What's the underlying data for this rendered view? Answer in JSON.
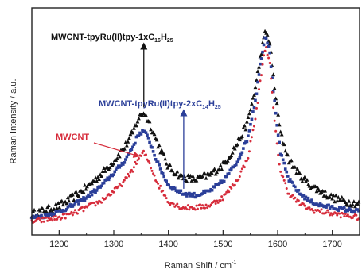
{
  "chart_data": {
    "type": "scatter",
    "xlabel": "Raman Shift / cm",
    "xlabel_sup": "-1",
    "ylabel": "Raman Intensity / a.u.",
    "xlim": [
      1150,
      1750
    ],
    "ylim": [
      0,
      1
    ],
    "yticks_shown": false,
    "grid": false,
    "legend": "none",
    "xticks": [
      1200,
      1300,
      1400,
      1500,
      1600,
      1700
    ],
    "series": [
      {
        "name": "MWCNT-tpyRu(II)tpy-1xC16H25",
        "color": "#111111",
        "marker": "triangle",
        "x": [
          1150,
          1175,
          1200,
          1225,
          1250,
          1275,
          1300,
          1320,
          1335,
          1345,
          1355,
          1365,
          1380,
          1400,
          1425,
          1450,
          1475,
          1500,
          1525,
          1545,
          1560,
          1570,
          1578,
          1585,
          1595,
          1605,
          1620,
          1640,
          1660,
          1680,
          1700,
          1725,
          1750
        ],
        "y": [
          0.05,
          0.07,
          0.09,
          0.13,
          0.18,
          0.24,
          0.31,
          0.38,
          0.45,
          0.52,
          0.55,
          0.5,
          0.4,
          0.28,
          0.23,
          0.22,
          0.24,
          0.29,
          0.39,
          0.5,
          0.68,
          0.85,
          0.95,
          0.9,
          0.66,
          0.45,
          0.32,
          0.24,
          0.19,
          0.16,
          0.13,
          0.11,
          0.1
        ]
      },
      {
        "name": "MWCNT-tpyRu(II)tpy-2xC14H25",
        "color": "#2b3f99",
        "marker": "square",
        "x": [
          1150,
          1175,
          1200,
          1225,
          1250,
          1275,
          1300,
          1320,
          1335,
          1345,
          1355,
          1365,
          1380,
          1400,
          1425,
          1450,
          1475,
          1500,
          1525,
          1545,
          1560,
          1570,
          1578,
          1585,
          1595,
          1605,
          1620,
          1640,
          1660,
          1680,
          1700,
          1725,
          1750
        ],
        "y": [
          0.03,
          0.04,
          0.06,
          0.09,
          0.13,
          0.18,
          0.25,
          0.31,
          0.38,
          0.44,
          0.46,
          0.41,
          0.3,
          0.19,
          0.15,
          0.14,
          0.16,
          0.21,
          0.3,
          0.42,
          0.62,
          0.82,
          0.93,
          0.86,
          0.58,
          0.35,
          0.22,
          0.15,
          0.11,
          0.09,
          0.08,
          0.07,
          0.06
        ]
      },
      {
        "name": "MWCNT",
        "color": "#d62b3a",
        "marker": "dot",
        "x": [
          1150,
          1175,
          1200,
          1225,
          1250,
          1275,
          1300,
          1320,
          1335,
          1345,
          1355,
          1365,
          1380,
          1400,
          1425,
          1450,
          1475,
          1500,
          1525,
          1545,
          1560,
          1570,
          1578,
          1585,
          1595,
          1605,
          1620,
          1640,
          1660,
          1680,
          1700,
          1725,
          1750
        ],
        "y": [
          0.01,
          0.02,
          0.03,
          0.05,
          0.08,
          0.11,
          0.16,
          0.21,
          0.27,
          0.32,
          0.35,
          0.3,
          0.2,
          0.11,
          0.08,
          0.08,
          0.09,
          0.13,
          0.21,
          0.32,
          0.53,
          0.74,
          0.88,
          0.8,
          0.48,
          0.26,
          0.15,
          0.1,
          0.07,
          0.06,
          0.05,
          0.04,
          0.03
        ]
      }
    ],
    "annotations": [
      {
        "id": "black",
        "text_main": "MWCNT-tpyRu(II)tpy-1xC",
        "sub1": "16",
        "text_mid": "H",
        "sub2": "25",
        "color": "#111111",
        "arrow_x": 1355
      },
      {
        "id": "blue",
        "text_main": "MWCNT-tpyRu(II)tpy-2xC",
        "sub1": "14",
        "text_mid": "H",
        "sub2": "25",
        "color": "#2b3f99",
        "arrow_x": 1428
      },
      {
        "id": "red",
        "text_main": "MWCNT",
        "color": "#d62b3a",
        "arrow_x": 1345
      }
    ]
  }
}
